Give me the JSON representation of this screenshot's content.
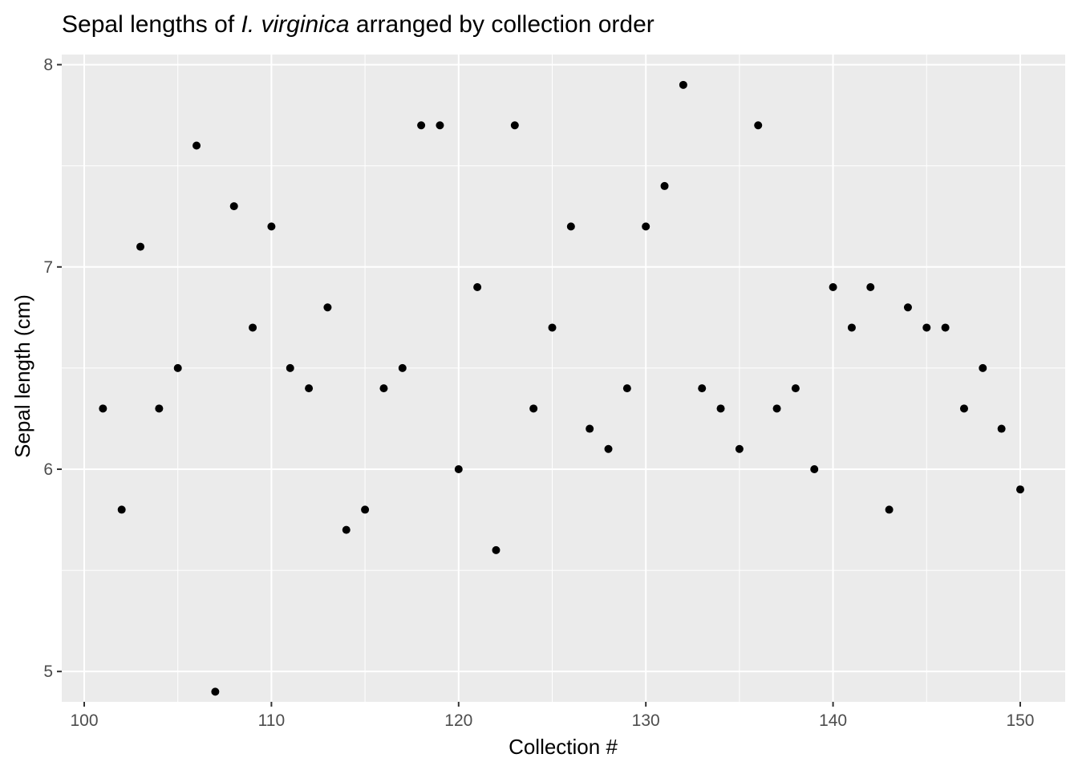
{
  "chart_data": {
    "type": "scatter",
    "title": {
      "before": "Sepal lengths of ",
      "italic": "I. virginica",
      "after": " arranged by collection order"
    },
    "xlabel": "Collection #",
    "ylabel": "Sepal length (cm)",
    "xlim": [
      98.8,
      152.4
    ],
    "ylim": [
      4.85,
      8.05
    ],
    "x_ticks": [
      100,
      110,
      120,
      130,
      140,
      150
    ],
    "y_ticks": [
      5,
      6,
      7,
      8
    ],
    "grid": true,
    "colors": {
      "panel_background": "#ebebeb",
      "grid_line": "#ffffff",
      "point": "#000000",
      "tick_text": "#4d4d4d",
      "tick_mark": "#333333"
    },
    "x": [
      101,
      102,
      103,
      104,
      105,
      106,
      107,
      108,
      109,
      110,
      111,
      112,
      113,
      114,
      115,
      116,
      117,
      118,
      119,
      120,
      121,
      122,
      123,
      124,
      125,
      126,
      127,
      128,
      129,
      130,
      131,
      132,
      133,
      134,
      135,
      136,
      137,
      138,
      139,
      140,
      141,
      142,
      143,
      144,
      145,
      146,
      147,
      148,
      149,
      150
    ],
    "y": [
      6.3,
      5.8,
      7.1,
      6.3,
      6.5,
      7.6,
      4.9,
      7.3,
      6.7,
      7.2,
      6.5,
      6.4,
      6.8,
      5.7,
      5.8,
      6.4,
      6.5,
      7.7,
      7.7,
      6.0,
      6.9,
      5.6,
      7.7,
      6.3,
      6.7,
      7.2,
      6.2,
      6.1,
      6.4,
      7.2,
      7.4,
      7.9,
      6.4,
      6.3,
      6.1,
      7.7,
      6.3,
      6.4,
      6.0,
      6.9,
      6.7,
      6.9,
      5.8,
      6.8,
      6.7,
      6.7,
      6.3,
      6.5,
      6.2,
      5.9
    ]
  }
}
